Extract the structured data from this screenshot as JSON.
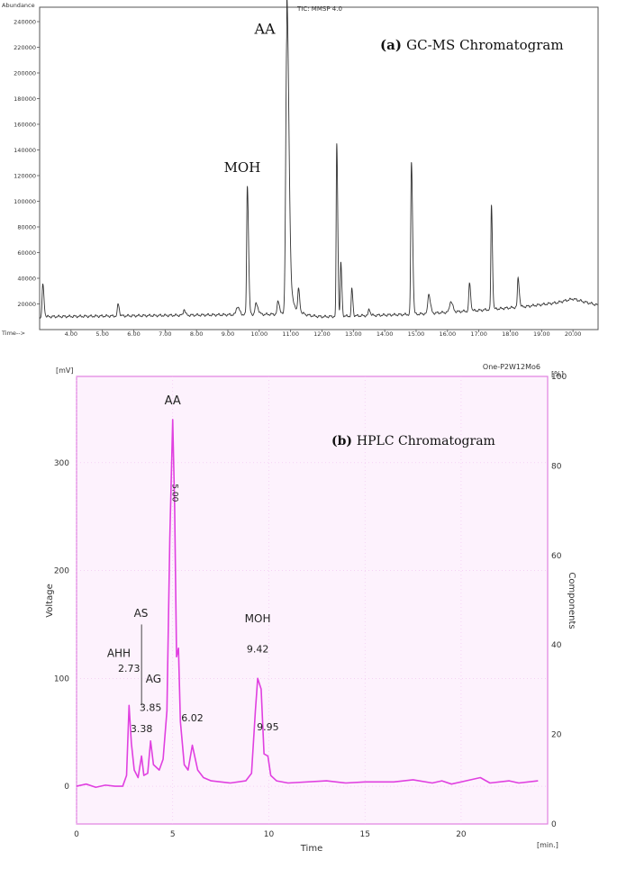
{
  "chart_data": [
    {
      "type": "line",
      "title": "GC-MS Chromatogram",
      "panel_tag": "(a)",
      "header_left": "Abundance",
      "header_right": "TIC: MMSP 4.0",
      "x_axis_label": "Time-->",
      "xlim": [
        3.0,
        20.8
      ],
      "ylim": [
        0,
        240000
      ],
      "x_ticks": [
        "4.00",
        "5.00",
        "6.00",
        "7.00",
        "8.00",
        "9.00",
        "10.00",
        "11.00",
        "12.00",
        "13.00",
        "14.00",
        "15.00",
        "16.00",
        "17.00",
        "18.00",
        "19.00",
        "20.00"
      ],
      "x_tick_values": [
        4,
        5,
        6,
        7,
        8,
        9,
        10,
        11,
        12,
        13,
        14,
        15,
        16,
        17,
        18,
        19,
        20
      ],
      "y_ticks": [
        "20000",
        "40000",
        "60000",
        "80000",
        "100000",
        "120000",
        "140000",
        "160000",
        "180000",
        "200000",
        "220000",
        "240000"
      ],
      "y_tick_values": [
        20000,
        40000,
        60000,
        80000,
        100000,
        120000,
        140000,
        160000,
        180000,
        200000,
        220000,
        240000
      ],
      "baseline": [
        [
          3.0,
          10000
        ],
        [
          10.6,
          12000
        ],
        [
          12.0,
          10000
        ],
        [
          15.0,
          12000
        ],
        [
          17.0,
          15000
        ],
        [
          18.5,
          18000
        ],
        [
          19.5,
          21000
        ],
        [
          20.0,
          24000
        ],
        [
          20.3,
          22000
        ],
        [
          20.8,
          19000
        ]
      ],
      "peaks": [
        {
          "t": 3.1,
          "h": 35000,
          "w": 0.03
        },
        {
          "t": 5.5,
          "h": 20000,
          "w": 0.03
        },
        {
          "t": 7.6,
          "h": 16000,
          "w": 0.03
        },
        {
          "t": 9.3,
          "h": 18000,
          "w": 0.05
        },
        {
          "t": 9.9,
          "h": 20000,
          "w": 0.05
        },
        {
          "t": 10.6,
          "h": 22000,
          "w": 0.04
        },
        {
          "t": 9.62,
          "h": 112000,
          "w": 0.03
        },
        {
          "t": 10.88,
          "h": 230000,
          "w": 0.05
        },
        {
          "t": 11.25,
          "h": 28000,
          "w": 0.03
        },
        {
          "t": 12.47,
          "h": 145000,
          "w": 0.025
        },
        {
          "t": 12.6,
          "h": 52000,
          "w": 0.025
        },
        {
          "t": 12.95,
          "h": 32000,
          "w": 0.025
        },
        {
          "t": 13.5,
          "h": 16000,
          "w": 0.03
        },
        {
          "t": 14.85,
          "h": 130000,
          "w": 0.03
        },
        {
          "t": 15.4,
          "h": 28000,
          "w": 0.04
        },
        {
          "t": 16.1,
          "h": 22000,
          "w": 0.05
        },
        {
          "t": 16.7,
          "h": 36000,
          "w": 0.03
        },
        {
          "t": 17.4,
          "h": 97000,
          "w": 0.025
        },
        {
          "t": 18.25,
          "h": 40000,
          "w": 0.03
        }
      ],
      "annotations": [
        {
          "text": "AA",
          "x": 10.88,
          "y": 232000
        },
        {
          "text": "MOH",
          "x": 9.62,
          "y": 120000
        }
      ]
    },
    {
      "type": "line",
      "title": "HPLC Chromatogram",
      "panel_tag": "(b)",
      "header_right": "One-P2W12Mo6",
      "xlabel": "Time",
      "x_unit": "[min.]",
      "ylabel": "Voltage",
      "y_unit": "[mV]",
      "y2label": "Components",
      "y2_unit": "[%]",
      "xlim": [
        0,
        24.5
      ],
      "ylim": [
        -35,
        380
      ],
      "y2lim": [
        0,
        100
      ],
      "x_ticks": [
        "0",
        "5",
        "10",
        "15",
        "20"
      ],
      "x_tick_values": [
        0,
        5,
        10,
        15,
        20
      ],
      "y_ticks": [
        "0",
        "100",
        "200",
        "300"
      ],
      "y_tick_values": [
        0,
        100,
        200,
        300
      ],
      "y2_ticks": [
        "0",
        "20",
        "40",
        "60",
        "80",
        "100"
      ],
      "y2_tick_values": [
        0,
        20,
        40,
        60,
        80,
        100
      ],
      "series_color": "#e040e0",
      "points": [
        [
          0,
          0
        ],
        [
          0.5,
          2
        ],
        [
          1.0,
          -1
        ],
        [
          1.5,
          1
        ],
        [
          2.0,
          0
        ],
        [
          2.4,
          0
        ],
        [
          2.6,
          10
        ],
        [
          2.73,
          75
        ],
        [
          2.85,
          40
        ],
        [
          3.0,
          15
        ],
        [
          3.2,
          8
        ],
        [
          3.38,
          28
        ],
        [
          3.5,
          10
        ],
        [
          3.7,
          12
        ],
        [
          3.85,
          42
        ],
        [
          4.0,
          20
        ],
        [
          4.3,
          15
        ],
        [
          4.5,
          25
        ],
        [
          4.7,
          70
        ],
        [
          4.85,
          230
        ],
        [
          5.0,
          340
        ],
        [
          5.1,
          260
        ],
        [
          5.2,
          120
        ],
        [
          5.3,
          128
        ],
        [
          5.4,
          60
        ],
        [
          5.6,
          20
        ],
        [
          5.8,
          15
        ],
        [
          6.02,
          38
        ],
        [
          6.3,
          15
        ],
        [
          6.6,
          8
        ],
        [
          7.0,
          5
        ],
        [
          8.0,
          3
        ],
        [
          8.8,
          5
        ],
        [
          9.1,
          12
        ],
        [
          9.3,
          70
        ],
        [
          9.42,
          100
        ],
        [
          9.6,
          90
        ],
        [
          9.75,
          30
        ],
        [
          9.95,
          28
        ],
        [
          10.1,
          10
        ],
        [
          10.4,
          5
        ],
        [
          11.0,
          3
        ],
        [
          13.0,
          5
        ],
        [
          14.0,
          3
        ],
        [
          15.0,
          4
        ],
        [
          16.5,
          4
        ],
        [
          17.5,
          6
        ],
        [
          18.5,
          3
        ],
        [
          19.0,
          5
        ],
        [
          19.5,
          2
        ],
        [
          21.0,
          8
        ],
        [
          21.5,
          3
        ],
        [
          22.5,
          5
        ],
        [
          23.0,
          3
        ],
        [
          24.0,
          5
        ]
      ],
      "annotations": [
        {
          "text": "AA",
          "x": 5.0,
          "y": 354
        },
        {
          "text": "5.00",
          "x": 5.0,
          "y": 272
        },
        {
          "text": "AS",
          "x": 3.35,
          "y": 157
        },
        {
          "text": "AHH",
          "x": 2.2,
          "y": 120
        },
        {
          "text": "2.73",
          "x": 2.73,
          "y": 106
        },
        {
          "text": "AG",
          "x": 4.0,
          "y": 96
        },
        {
          "text": "3.85",
          "x": 3.85,
          "y": 70
        },
        {
          "text": "3.38",
          "x": 3.38,
          "y": 50
        },
        {
          "text": "6.02",
          "x": 6.02,
          "y": 60
        },
        {
          "text": "MOH",
          "x": 9.42,
          "y": 152
        },
        {
          "text": "9.42",
          "x": 9.42,
          "y": 124
        },
        {
          "text": "9.95",
          "x": 9.95,
          "y": 52
        }
      ]
    }
  ]
}
